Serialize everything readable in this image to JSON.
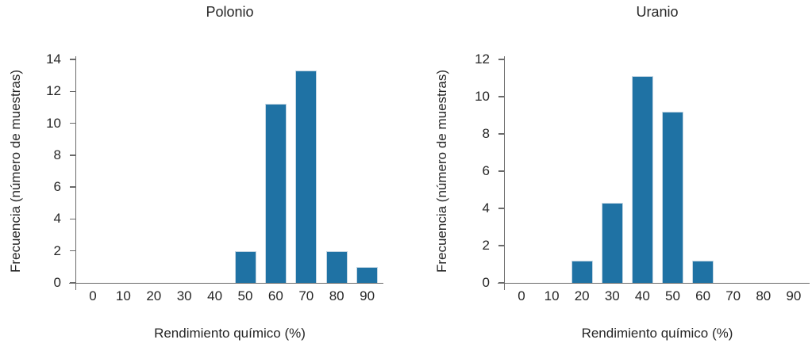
{
  "figure": {
    "background": "#ffffff",
    "bar_color": "#1f72a4",
    "bar_edge_color": "#c3d6e3",
    "axis_color": "#6a6a6a",
    "text_color": "#262626"
  },
  "chart_data": [
    {
      "type": "bar",
      "title": "Polonio",
      "xlabel": "Rendimiento químico (%)",
      "ylabel": "Frecuencia (número de muestras)",
      "categories": [
        0,
        10,
        20,
        30,
        40,
        50,
        60,
        70,
        80,
        90
      ],
      "values": [
        0,
        0,
        0,
        0,
        0,
        2,
        11.2,
        13.3,
        2,
        1
      ],
      "x_tick_labels": [
        "0",
        "10",
        "20",
        "30",
        "40",
        "50",
        "60",
        "70",
        "80",
        "90"
      ],
      "y_tick_labels": [
        "0",
        "2",
        "4",
        "6",
        "8",
        "10",
        "12",
        "14"
      ],
      "ylim": [
        0,
        14
      ],
      "grid": false,
      "legend": "none"
    },
    {
      "type": "bar",
      "title": "Uranio",
      "xlabel": "Rendimiento químico (%)",
      "ylabel": "Frecuencia (número de muestras)",
      "categories": [
        0,
        10,
        20,
        30,
        40,
        50,
        60,
        70,
        80,
        90
      ],
      "values": [
        0,
        0,
        1.2,
        4.3,
        11.1,
        9.2,
        1.2,
        0,
        0,
        0
      ],
      "x_tick_labels": [
        "0",
        "10",
        "20",
        "30",
        "40",
        "50",
        "60",
        "70",
        "80",
        "90"
      ],
      "y_tick_labels": [
        "0",
        "2",
        "4",
        "6",
        "8",
        "10",
        "12"
      ],
      "ylim": [
        0,
        12
      ],
      "grid": false,
      "legend": "none"
    }
  ]
}
